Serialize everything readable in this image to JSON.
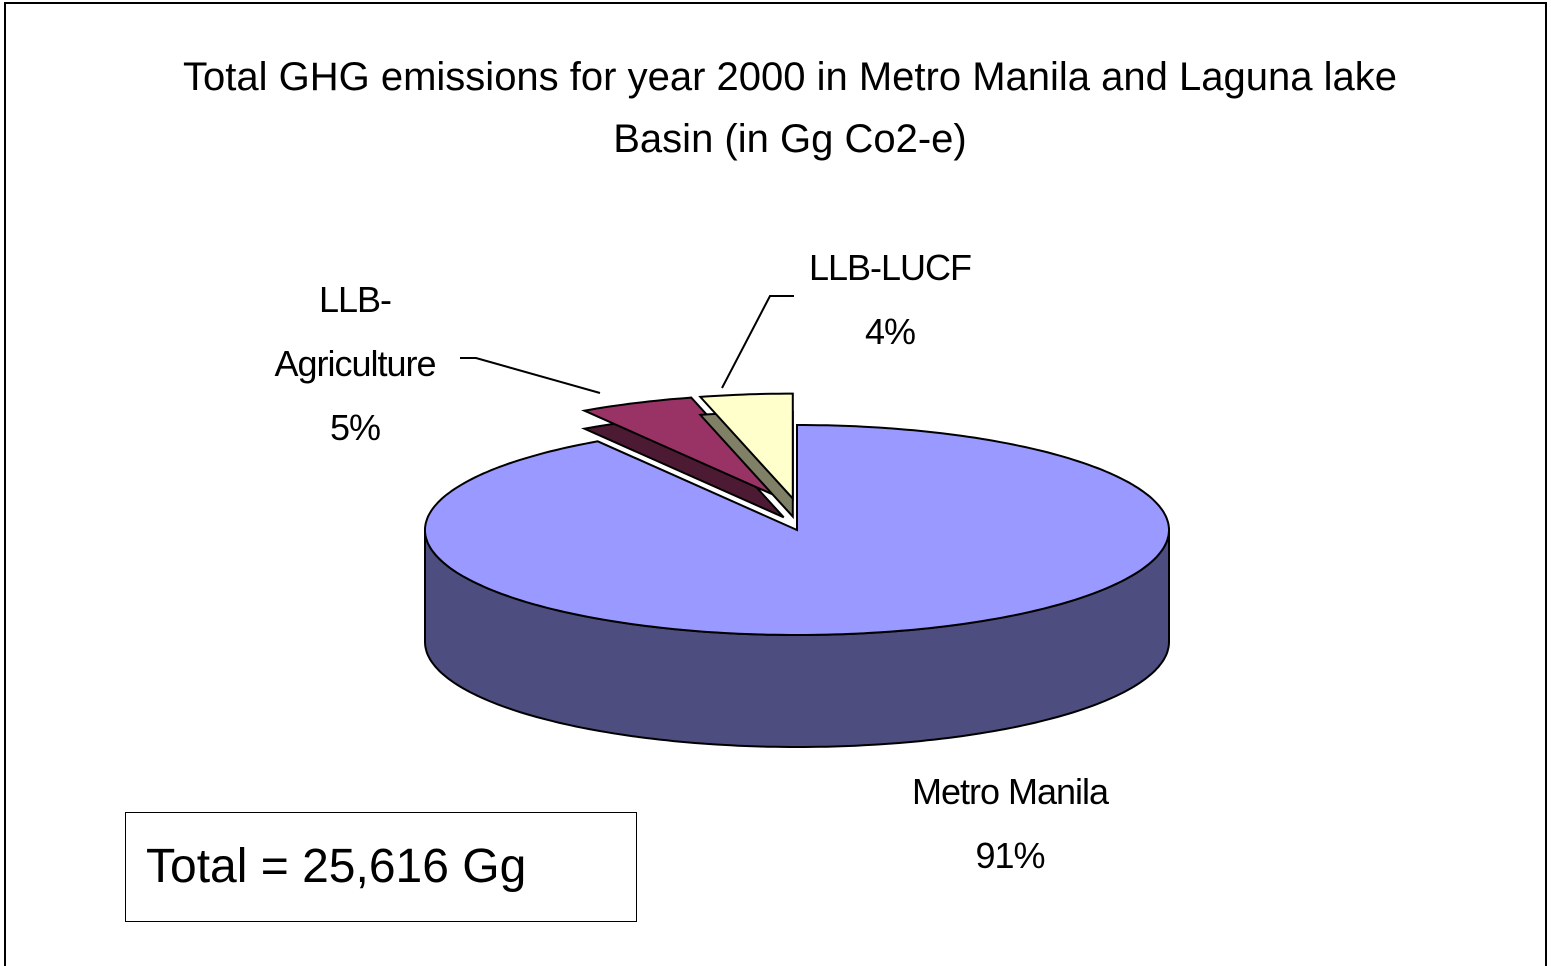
{
  "chart_data": {
    "type": "pie3d",
    "title": "Total GHG emissions for year 2000 in Metro Manila and Laguna lake Basin (in Gg Co2-e)",
    "categories": [
      "Metro Manila",
      "LLB-Agriculture",
      "LLB-LUCF"
    ],
    "values": [
      91,
      5,
      4
    ],
    "value_labels": [
      "91%",
      "5%",
      "4%"
    ],
    "colors": [
      "#9999ff",
      "#993366",
      "#ffffcc"
    ],
    "side_colors": [
      "#4d4d80",
      "#4d1a33",
      "#808066"
    ],
    "annotation": "Total = 25,616 Gg"
  }
}
